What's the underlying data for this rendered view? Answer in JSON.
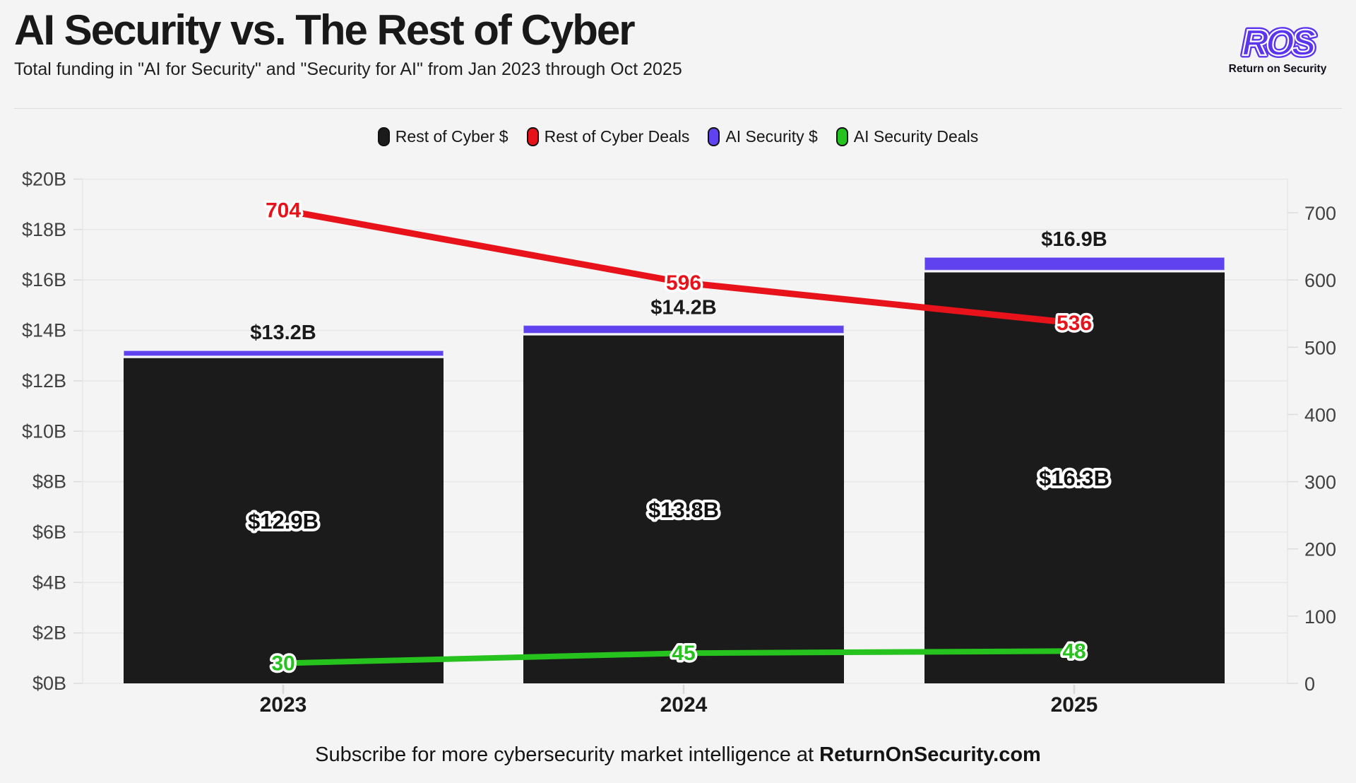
{
  "header": {
    "title": "AI Security vs. The Rest of Cyber",
    "subtitle": "Total funding in \"AI for Security\" and \"Security for AI\" from Jan 2023 through Oct 2025",
    "logo": {
      "acronym": "ROS",
      "name": "Return on Security",
      "accent_color": "#5b35ee"
    }
  },
  "legend": [
    {
      "label": "Rest of Cyber $",
      "color": "#1b1b1b"
    },
    {
      "label": "Rest of Cyber Deals",
      "color": "#e8131a"
    },
    {
      "label": "AI Security $",
      "color": "#6142ef"
    },
    {
      "label": "AI Security Deals",
      "color": "#26c21e"
    }
  ],
  "footer": {
    "text": "Subscribe for more cybersecurity market intelligence at ",
    "brand": "ReturnOnSecurity.com"
  },
  "chart_data": {
    "type": "bar+line combo, stacked bars on left axis, deal-count lines on right axis",
    "categories": [
      "2023",
      "2024",
      "2025"
    ],
    "series": [
      {
        "name": "Rest of Cyber $",
        "type": "bar",
        "axis": "left",
        "stack_order": 0,
        "color": "#1b1b1b",
        "values_billions": [
          12.9,
          13.8,
          16.3
        ],
        "value_labels": [
          "$12.9B",
          "$13.8B",
          "$16.3B"
        ]
      },
      {
        "name": "AI Security $",
        "type": "bar",
        "axis": "left",
        "stack_order": 1,
        "color": "#6142ef",
        "values_billions": [
          0.3,
          0.4,
          0.6
        ]
      },
      {
        "name": "Rest of Cyber Deals",
        "type": "line",
        "axis": "right",
        "color": "#e8131a",
        "values": [
          704,
          596,
          536
        ],
        "value_labels": [
          "704",
          "596",
          "536"
        ]
      },
      {
        "name": "AI Security Deals",
        "type": "line",
        "axis": "right",
        "color": "#26c21e",
        "values": [
          30,
          45,
          48
        ],
        "value_labels": [
          "30",
          "45",
          "48"
        ]
      }
    ],
    "stack_totals_billions": [
      13.2,
      14.2,
      16.9
    ],
    "stack_total_labels": [
      "$13.2B",
      "$14.2B",
      "$16.9B"
    ],
    "left_axis": {
      "range": [
        0,
        20
      ],
      "tick_values": [
        0,
        2,
        4,
        6,
        8,
        10,
        12,
        14,
        16,
        18,
        20
      ],
      "tick_labels": [
        "$0B",
        "$2B",
        "$4B",
        "$6B",
        "$8B",
        "$10B",
        "$12B",
        "$14B",
        "$16B",
        "$18B",
        "$20B"
      ]
    },
    "right_axis": {
      "range": [
        0,
        750
      ],
      "tick_values": [
        0,
        100,
        200,
        300,
        400,
        500,
        600,
        700
      ],
      "tick_labels": [
        "0",
        "100",
        "200",
        "300",
        "400",
        "500",
        "600",
        "700"
      ]
    },
    "grid": "horizontal on, plot area bounded left/right by light vertical lines",
    "legend_position": "top center"
  }
}
